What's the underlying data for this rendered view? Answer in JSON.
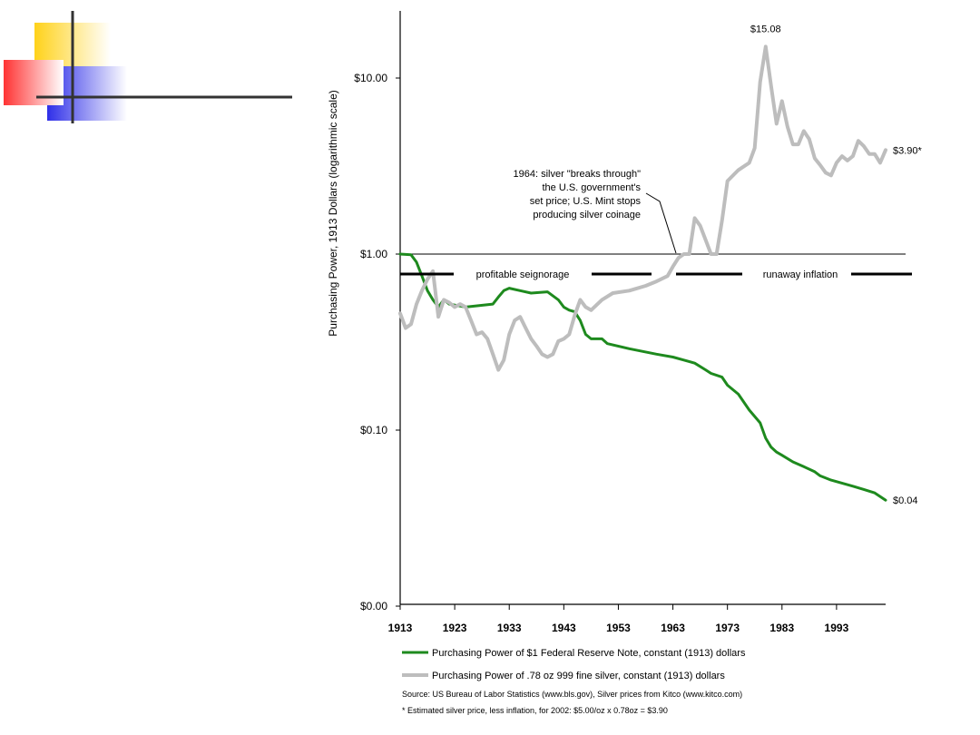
{
  "decor": {
    "square_colors": [
      "#ffd21a",
      "#ff3333",
      "#2f2fe8"
    ],
    "line_color": "#333333"
  },
  "chart_data": {
    "type": "line",
    "y_scale": "log",
    "ylabel": "Purchasing Power, 1913 Dollars (logarithmic scale)",
    "xlabel": "",
    "xlim": [
      1913,
      2002
    ],
    "x_ticks": [
      1913,
      1923,
      1933,
      1943,
      1953,
      1963,
      1973,
      1983,
      1993
    ],
    "y_ticks": [
      {
        "value": 10.0,
        "label": "$10.00"
      },
      {
        "value": 1.0,
        "label": "$1.00"
      },
      {
        "value": 0.1,
        "label": "$0.10"
      },
      {
        "value": 0.01,
        "label": "$0.00"
      }
    ],
    "ylim": [
      0.01,
      25
    ],
    "reference_line": {
      "y": 1.0
    },
    "series": [
      {
        "name": "Purchasing Power of $1 Federal Reserve Note, constant (1913) dollars",
        "color": "#1e8a1e",
        "x": [
          1913,
          1915,
          1916,
          1917,
          1918,
          1919,
          1920,
          1921,
          1922,
          1925,
          1930,
          1931,
          1932,
          1933,
          1935,
          1937,
          1940,
          1942,
          1943,
          1944,
          1945,
          1946,
          1947,
          1948,
          1950,
          1951,
          1955,
          1960,
          1963,
          1965,
          1967,
          1969,
          1970,
          1972,
          1973,
          1975,
          1977,
          1979,
          1980,
          1981,
          1982,
          1983,
          1985,
          1987,
          1989,
          1990,
          1992,
          1994,
          1996,
          1998,
          2000,
          2002
        ],
        "values": [
          1.0,
          0.99,
          0.9,
          0.75,
          0.62,
          0.55,
          0.5,
          0.55,
          0.52,
          0.5,
          0.52,
          0.57,
          0.62,
          0.64,
          0.62,
          0.6,
          0.61,
          0.55,
          0.5,
          0.48,
          0.47,
          0.42,
          0.35,
          0.33,
          0.33,
          0.31,
          0.29,
          0.27,
          0.26,
          0.25,
          0.24,
          0.22,
          0.21,
          0.2,
          0.18,
          0.16,
          0.13,
          0.11,
          0.09,
          0.08,
          0.075,
          0.072,
          0.066,
          0.062,
          0.058,
          0.055,
          0.052,
          0.05,
          0.048,
          0.046,
          0.044,
          0.04
        ]
      },
      {
        "name": "Purchasing Power of .78 oz 999 fine silver, constant (1913) dollars",
        "color": "#bdbdbd",
        "x": [
          1913,
          1914,
          1915,
          1916,
          1917,
          1918,
          1919,
          1920,
          1921,
          1922,
          1923,
          1924,
          1925,
          1926,
          1927,
          1928,
          1929,
          1930,
          1931,
          1932,
          1933,
          1934,
          1935,
          1936,
          1937,
          1938,
          1939,
          1940,
          1941,
          1942,
          1943,
          1944,
          1945,
          1946,
          1947,
          1948,
          1950,
          1952,
          1955,
          1958,
          1960,
          1962,
          1963,
          1964,
          1965,
          1966,
          1967,
          1968,
          1970,
          1971,
          1972,
          1973,
          1975,
          1977,
          1978,
          1979,
          1980,
          1981,
          1982,
          1983,
          1984,
          1985,
          1986,
          1987,
          1988,
          1989,
          1990,
          1991,
          1992,
          1993,
          1994,
          1995,
          1996,
          1997,
          1998,
          1999,
          2000,
          2001,
          2002
        ],
        "values": [
          0.46,
          0.38,
          0.4,
          0.52,
          0.62,
          0.72,
          0.8,
          0.44,
          0.55,
          0.53,
          0.5,
          0.52,
          0.5,
          0.42,
          0.35,
          0.36,
          0.33,
          0.27,
          0.22,
          0.25,
          0.35,
          0.42,
          0.44,
          0.38,
          0.33,
          0.3,
          0.27,
          0.26,
          0.27,
          0.32,
          0.33,
          0.35,
          0.45,
          0.55,
          0.5,
          0.48,
          0.55,
          0.6,
          0.62,
          0.66,
          0.7,
          0.75,
          0.85,
          0.95,
          1.0,
          1.0,
          1.6,
          1.45,
          1.0,
          1.0,
          1.55,
          2.6,
          3.0,
          3.3,
          4.0,
          9.5,
          15.08,
          9.0,
          5.5,
          7.4,
          5.3,
          4.2,
          4.2,
          5.0,
          4.5,
          3.5,
          3.2,
          2.9,
          2.8,
          3.3,
          3.6,
          3.4,
          3.6,
          4.4,
          4.1,
          3.7,
          3.7,
          3.3,
          3.9
        ]
      }
    ],
    "end_labels": [
      {
        "x": 1980,
        "y": 15.08,
        "text": "$15.08"
      },
      {
        "x": 2002,
        "y": 3.9,
        "text": "$3.90*"
      },
      {
        "x": 2002,
        "y": 0.04,
        "text": "$0.04"
      }
    ],
    "callout": {
      "lines": [
        "1964: silver \"breaks through\"",
        "the U.S. government's",
        "set price; U.S. Mint stops",
        "producing silver coinage"
      ],
      "x": 1964,
      "y": 1.0
    },
    "period_labels": [
      {
        "text": "profitable seignorage",
        "x_start": 1913,
        "x_end": 1960
      },
      {
        "text": "runaway inflation",
        "x_start": 1964,
        "x_end": 2002
      }
    ],
    "source_notes": [
      "Source: US Bureau of Labor Statistics (www.bls.gov), Silver prices from Kitco (www.kitco.com)",
      "* Estimated silver price, less inflation, for 2002: $5.00/oz x 0.78oz = $3.90"
    ]
  }
}
